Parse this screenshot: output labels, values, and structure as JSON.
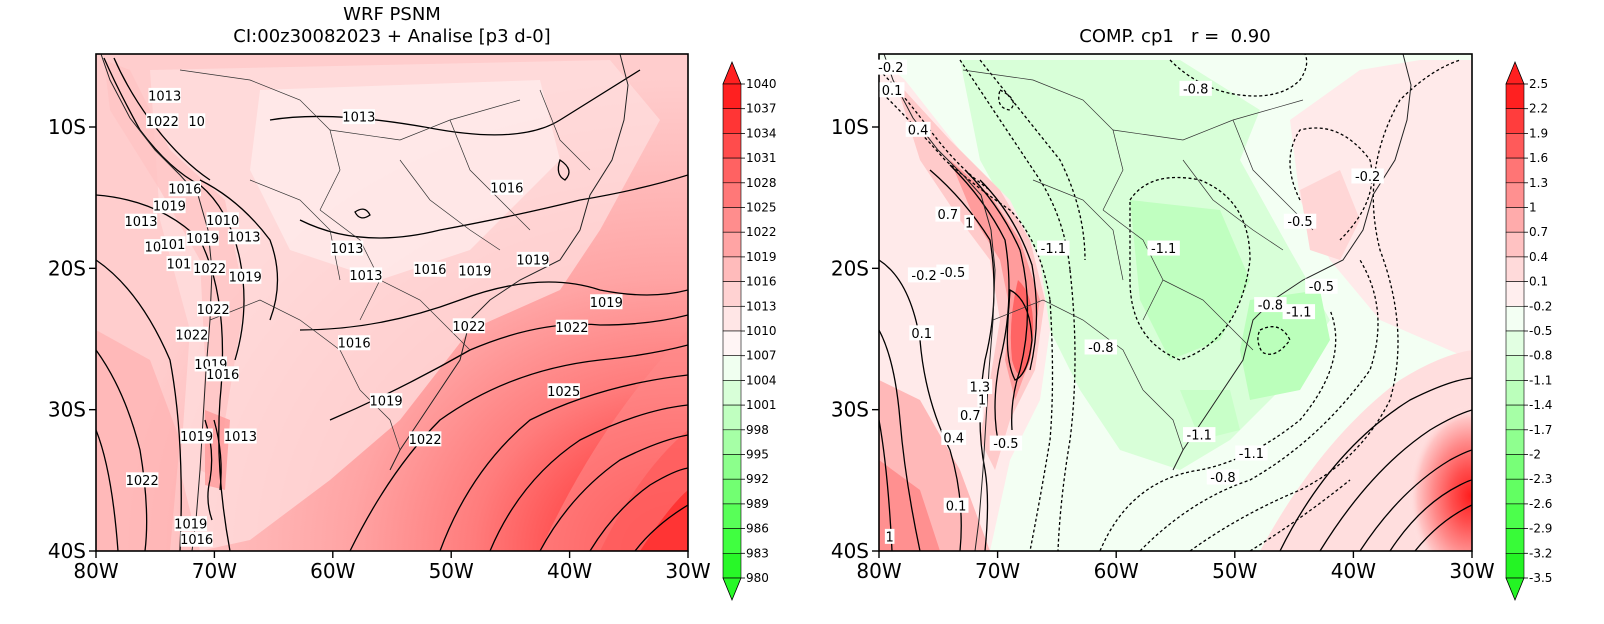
{
  "panels": [
    {
      "id": "left",
      "title_line1": "WRF PSNM",
      "title_line2": "CI:00z30082023 + Analise  [p3 d-0]",
      "x_ticks": [
        "80W",
        "70W",
        "60W",
        "50W",
        "40W",
        "30W"
      ],
      "y_ticks": [
        "10S",
        "20S",
        "30S",
        "40S"
      ],
      "colorbar": [
        "1040",
        "1037",
        "1034",
        "1031",
        "1028",
        "1025",
        "1022",
        "1019",
        "1016",
        "1013",
        "1010",
        "1007",
        "1004",
        "1001",
        "998",
        "995",
        "992",
        "989",
        "986",
        "983",
        "980"
      ],
      "colorbar_colors": [
        "#ff2020",
        "#ff3535",
        "#ff4c4c",
        "#ff6262",
        "#ff7878",
        "#ff8d8d",
        "#ffa4a4",
        "#ffbbbb",
        "#ffd2d2",
        "#ffe6e6",
        "#fff5f5",
        "#f0fff0",
        "#d8ffd8",
        "#c0ffc0",
        "#a6ffa6",
        "#8cff8c",
        "#72ff72",
        "#58ff58",
        "#40ff40",
        "#28f828"
      ],
      "contour_labels": [
        {
          "text": "1013",
          "lat": -7.8,
          "lon": -74.2
        },
        {
          "text": "1022",
          "lat": -9.6,
          "lon": -74.4
        },
        {
          "text": "10",
          "lat": -9.6,
          "lon": -71.5
        },
        {
          "text": "1016",
          "lat": -14.4,
          "lon": -72.5
        },
        {
          "text": "1019",
          "lat": -15.6,
          "lon": -73.8
        },
        {
          "text": "1013",
          "lat": -16.7,
          "lon": -76.2
        },
        {
          "text": "1010",
          "lat": -16.6,
          "lon": -69.3
        },
        {
          "text": "1013",
          "lat": -17.8,
          "lon": -67.5
        },
        {
          "text": "1019",
          "lat": -17.9,
          "lon": -71.0
        },
        {
          "text": "10",
          "lat": -18.5,
          "lon": -75.2
        },
        {
          "text": "101",
          "lat": -18.3,
          "lon": -73.5
        },
        {
          "text": "101",
          "lat": -19.7,
          "lon": -73.0
        },
        {
          "text": "1022",
          "lat": -20.0,
          "lon": -70.4
        },
        {
          "text": "1013",
          "lat": -9.3,
          "lon": -57.8
        },
        {
          "text": "1016",
          "lat": -14.3,
          "lon": -45.3
        },
        {
          "text": "1013",
          "lat": -18.6,
          "lon": -58.8
        },
        {
          "text": "1019",
          "lat": -20.6,
          "lon": -67.4
        },
        {
          "text": "1013",
          "lat": -20.5,
          "lon": -57.2
        },
        {
          "text": "1016",
          "lat": -20.1,
          "lon": -51.8
        },
        {
          "text": "1019",
          "lat": -20.2,
          "lon": -48.0
        },
        {
          "text": "1019",
          "lat": -19.4,
          "lon": -43.1
        },
        {
          "text": "1022",
          "lat": -22.9,
          "lon": -70.1
        },
        {
          "text": "1022",
          "lat": -24.7,
          "lon": -71.9
        },
        {
          "text": "1016",
          "lat": -25.3,
          "lon": -58.2
        },
        {
          "text": "1022",
          "lat": -24.1,
          "lon": -48.5
        },
        {
          "text": "1019",
          "lat": -22.4,
          "lon": -36.9
        },
        {
          "text": "1022",
          "lat": -24.2,
          "lon": -39.8
        },
        {
          "text": "1019",
          "lat": -26.8,
          "lon": -70.3
        },
        {
          "text": "1016",
          "lat": -27.5,
          "lon": -69.3
        },
        {
          "text": "1025",
          "lat": -28.7,
          "lon": -40.5
        },
        {
          "text": "1019",
          "lat": -29.4,
          "lon": -55.5
        },
        {
          "text": "1019",
          "lat": -31.9,
          "lon": -71.5
        },
        {
          "text": "1013",
          "lat": -31.9,
          "lon": -67.8
        },
        {
          "text": "1022",
          "lat": -32.1,
          "lon": -52.2
        },
        {
          "text": "1022",
          "lat": -35.0,
          "lon": -76.1
        },
        {
          "text": "1019",
          "lat": -38.1,
          "lon": -72.0
        },
        {
          "text": "1016",
          "lat": -39.2,
          "lon": -71.5
        }
      ]
    },
    {
      "id": "right",
      "title_line1": "COMP. cp1   r =  0.90",
      "title_line2": "",
      "x_ticks": [
        "80W",
        "70W",
        "60W",
        "50W",
        "40W",
        "30W"
      ],
      "y_ticks": [
        "10S",
        "20S",
        "30S",
        "40S"
      ],
      "colorbar": [
        "2.5",
        "2.2",
        "1.9",
        "1.6",
        "1.3",
        "1",
        "0.7",
        "0.4",
        "0.1",
        "-0.2",
        "-0.5",
        "-0.8",
        "-1.1",
        "-1.4",
        "-1.7",
        "-2",
        "-2.3",
        "-2.6",
        "-2.9",
        "-3.2",
        "-3.5"
      ],
      "colorbar_colors": [
        "#ff2020",
        "#ff3d3d",
        "#ff5a5a",
        "#ff7575",
        "#ff9090",
        "#ffabab",
        "#ffc2c2",
        "#ffdada",
        "#ffeeee",
        "#f3fff3",
        "#e2ffe2",
        "#cfffcf",
        "#bbffbb",
        "#a6ffa6",
        "#8fff8f",
        "#78ff78",
        "#62ff62",
        "#4cff4c",
        "#38fb38",
        "#24f424"
      ],
      "contour_labels": [
        {
          "text": "-0.2",
          "lat": -5.8,
          "lon": -79.0
        },
        {
          "text": "0.1",
          "lat": -7.4,
          "lon": -78.9
        },
        {
          "text": "-0.8",
          "lat": -7.3,
          "lon": -53.3
        },
        {
          "text": "0.4",
          "lat": -10.2,
          "lon": -76.7
        },
        {
          "text": "-0.2",
          "lat": -13.5,
          "lon": -38.8
        },
        {
          "text": "0.7",
          "lat": -16.2,
          "lon": -74.2
        },
        {
          "text": "1",
          "lat": -16.8,
          "lon": -72.4
        },
        {
          "text": "-0.5",
          "lat": -16.7,
          "lon": -44.5
        },
        {
          "text": "-1.1",
          "lat": -18.6,
          "lon": -65.3
        },
        {
          "text": "-1.1",
          "lat": -18.6,
          "lon": -56.0
        },
        {
          "text": "-0.2",
          "lat": -20.5,
          "lon": -76.2
        },
        {
          "text": "-0.5",
          "lat": -20.3,
          "lon": -73.8
        },
        {
          "text": "-0.5",
          "lat": -21.3,
          "lon": -42.7
        },
        {
          "text": "-0.8",
          "lat": -22.6,
          "lon": -47.0
        },
        {
          "text": "-1.1",
          "lat": -23.1,
          "lon": -44.6
        },
        {
          "text": "0.1",
          "lat": -24.6,
          "lon": -76.4
        },
        {
          "text": "-0.8",
          "lat": -25.6,
          "lon": -61.3
        },
        {
          "text": "1.3",
          "lat": -28.4,
          "lon": -71.5
        },
        {
          "text": "1",
          "lat": -29.3,
          "lon": -71.3
        },
        {
          "text": "0.7",
          "lat": -30.4,
          "lon": -72.3
        },
        {
          "text": "0.4",
          "lat": -32.0,
          "lon": -73.7
        },
        {
          "text": "-0.5",
          "lat": -32.4,
          "lon": -69.3
        },
        {
          "text": "-1.1",
          "lat": -31.8,
          "lon": -53.0
        },
        {
          "text": "-1.1",
          "lat": -33.1,
          "lon": -48.6
        },
        {
          "text": "-0.8",
          "lat": -34.8,
          "lon": -51.0
        },
        {
          "text": "0.1",
          "lat": -36.8,
          "lon": -73.5
        },
        {
          "text": "1",
          "lat": -39.0,
          "lon": -79.1
        }
      ]
    }
  ]
}
